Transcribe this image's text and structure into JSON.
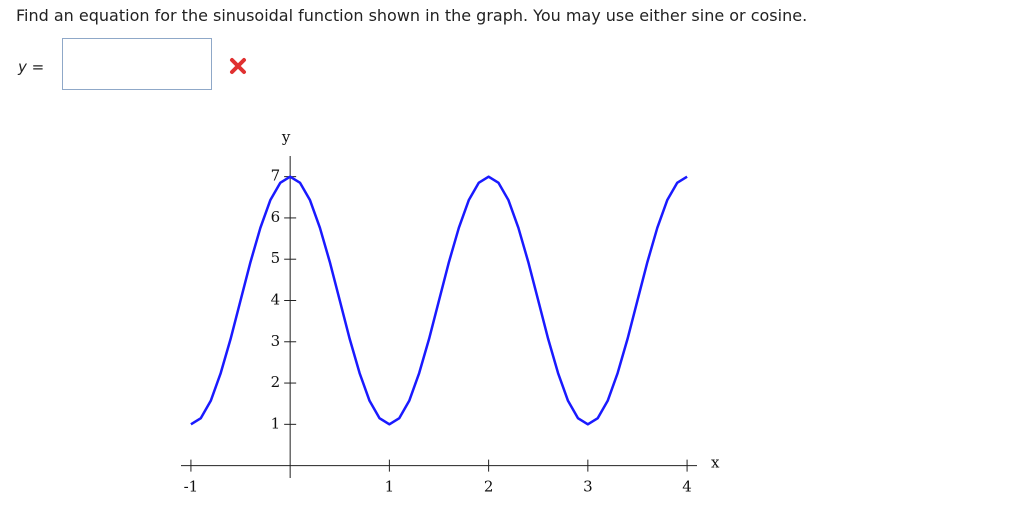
{
  "question": "Find an equation for the sinusoidal function shown in the graph. You may use either sine or cosine.",
  "answer_label": "y =",
  "chart_data": {
    "type": "line",
    "x_label": "x",
    "y_label": "y",
    "xlim": [
      -1.1,
      4.1
    ],
    "ylim": [
      -0.3,
      7.5
    ],
    "xticks": [
      -1,
      1,
      2,
      3,
      4
    ],
    "yticks": [
      1,
      2,
      3,
      4,
      5,
      6,
      7
    ],
    "series": [
      {
        "color": "#1a1aff",
        "x": [
          -1,
          -0.9,
          -0.8,
          -0.7,
          -0.6,
          -0.5,
          -0.4,
          -0.3,
          -0.2,
          -0.1,
          0,
          0.1,
          0.2,
          0.3,
          0.4,
          0.5,
          0.6,
          0.7,
          0.8,
          0.9,
          1,
          1.1,
          1.2,
          1.3,
          1.4,
          1.5,
          1.6,
          1.7,
          1.8,
          1.9,
          2,
          2.1,
          2.2,
          2.3,
          2.4,
          2.5,
          2.6,
          2.7,
          2.8,
          2.9,
          3,
          3.1,
          3.2,
          3.3,
          3.4,
          3.5,
          3.6,
          3.7,
          3.8,
          3.9,
          4
        ],
        "values": [
          1,
          1.15,
          1.57,
          2.24,
          3.07,
          4,
          4.93,
          5.76,
          6.43,
          6.85,
          7,
          6.85,
          6.43,
          5.76,
          4.93,
          4,
          3.07,
          2.24,
          1.57,
          1.15,
          1,
          1.15,
          1.57,
          2.24,
          3.07,
          4,
          4.93,
          5.76,
          6.43,
          6.85,
          7,
          6.85,
          6.43,
          5.76,
          4.93,
          4,
          3.07,
          2.24,
          1.57,
          1.15,
          1,
          1.15,
          1.57,
          2.24,
          3.07,
          4,
          4.93,
          5.76,
          6.43,
          6.85,
          7
        ]
      }
    ]
  }
}
